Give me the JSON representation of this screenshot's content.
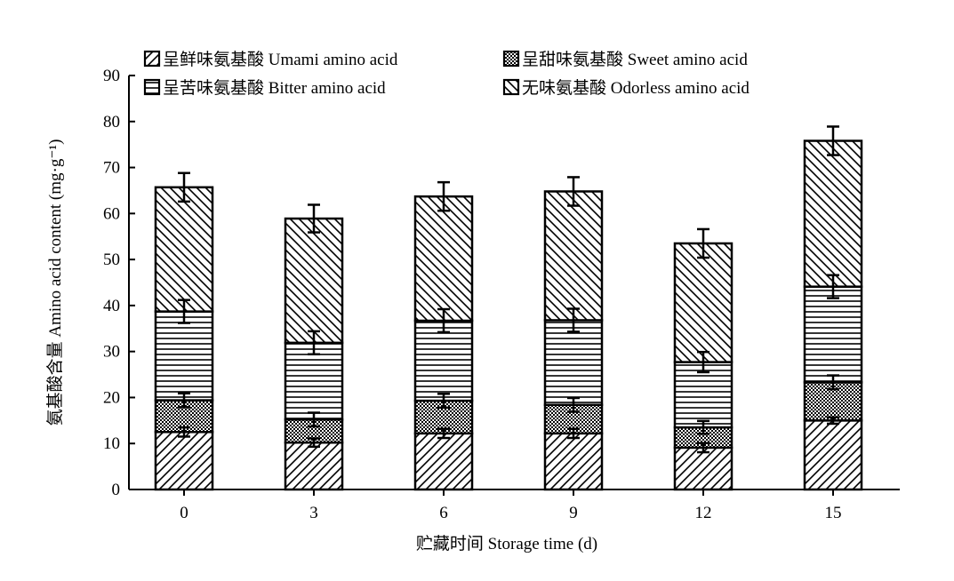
{
  "chart_data": {
    "type": "bar",
    "stacked": true,
    "title": "",
    "xlabel": "贮藏时间 Storage time (d)",
    "ylabel": "氨基酸含量 Amino acid content (mg·g⁻¹)",
    "categories": [
      "0",
      "3",
      "6",
      "9",
      "12",
      "15"
    ],
    "ylim": [
      0,
      90
    ],
    "yticks": [
      "0",
      "10",
      "20",
      "30",
      "40",
      "50",
      "60",
      "70",
      "80",
      "90"
    ],
    "grid": false,
    "legend_position": "top",
    "series": [
      {
        "name": "呈鲜味氨基酸 Umami amino acid",
        "pattern": "diagonal-right",
        "values": [
          12.5,
          10.2,
          12.2,
          12.2,
          9.1,
          15.0
        ],
        "error": [
          1.0,
          0.9,
          1.0,
          1.0,
          1.0,
          0.7
        ]
      },
      {
        "name": "呈甜味氨基酸 Sweet amino acid",
        "pattern": "crosshatch",
        "values": [
          6.9,
          5.0,
          7.1,
          6.2,
          4.4,
          8.3
        ],
        "error": [
          1.5,
          1.5,
          1.5,
          1.5,
          1.4,
          1.5
        ]
      },
      {
        "name": "呈苦味氨基酸 Bitter amino acid",
        "pattern": "horizontal",
        "values": [
          19.3,
          16.7,
          17.4,
          18.4,
          14.2,
          20.8
        ],
        "error": [
          2.5,
          2.5,
          2.5,
          2.5,
          2.2,
          2.5
        ]
      },
      {
        "name": "无味氨基酸 Odorless amino acid",
        "pattern": "diagonal-left",
        "values": [
          27.0,
          27.0,
          27.0,
          28.0,
          25.8,
          31.7
        ],
        "error": [
          3.1,
          3.0,
          3.1,
          3.1,
          3.1,
          3.1
        ]
      }
    ]
  }
}
